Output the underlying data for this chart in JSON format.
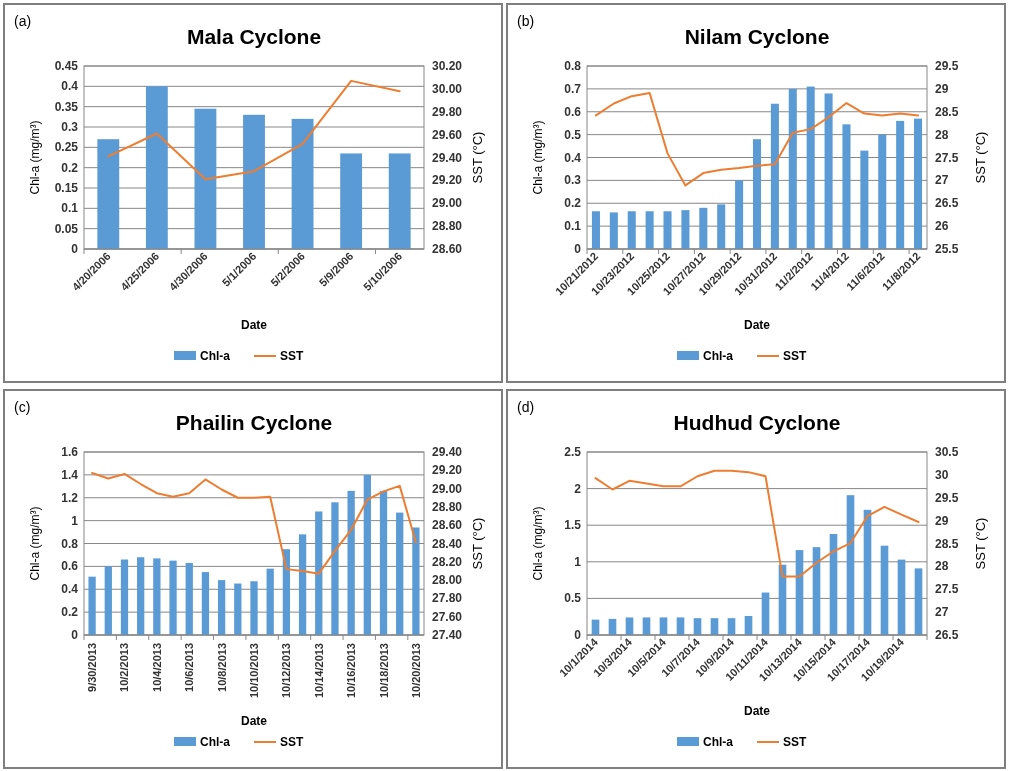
{
  "chart_data": [
    {
      "type": "bar",
      "title": "Mala Cyclone",
      "annotations": [
        "(a)"
      ],
      "xlabel": "Date",
      "ylabel": "Chl-a (mg/m³)",
      "y2label": "SST (°C)",
      "categories": [
        "4/20/2006",
        "4/25/2006",
        "4/30/2006",
        "5/1/2006",
        "5/2/2006",
        "5/9/2006",
        "5/10/2006"
      ],
      "ylim": [
        0,
        0.45
      ],
      "yticks": [
        0,
        0.05,
        0.1,
        0.15,
        0.2,
        0.25,
        0.3,
        0.35,
        0.4,
        0.45
      ],
      "y2lim": [
        28.6,
        30.2
      ],
      "y2ticks": [
        {
          "value": 28.6,
          "label": "28.60"
        },
        {
          "value": 28.8,
          "label": "28.80"
        },
        {
          "value": 29,
          "label": "29.00"
        },
        {
          "value": 29.2,
          "label": "29.20"
        },
        {
          "value": 29.4,
          "label": "29.40"
        },
        {
          "value": 29.6,
          "label": "29.60"
        },
        {
          "value": 29.8,
          "label": "29.80"
        },
        {
          "value": 30,
          "label": "30.00"
        },
        {
          "value": 30.2,
          "label": "30.20"
        }
      ],
      "grid": "y",
      "legend": "bottom",
      "series": [
        {
          "name": "Chl-a",
          "color": "#5b9bd5",
          "values": [
            0.27,
            0.4,
            0.345,
            0.33,
            0.32,
            0.235,
            0.235
          ]
        },
        {
          "name": "SST",
          "type": "line",
          "axis": "y2",
          "color": "#ed7d31",
          "values": [
            29.41,
            29.61,
            29.21,
            29.28,
            29.52,
            30.07,
            29.98
          ]
        }
      ]
    },
    {
      "type": "bar",
      "title": "Nilam Cyclone",
      "annotations": [
        "(b)"
      ],
      "xlabel": "Date",
      "ylabel": "Chl-a (mg/m³)",
      "y2label": "SST (°C)",
      "categories": [
        "10/21/2012",
        null,
        "10/23/2012",
        null,
        "10/25/2012",
        null,
        "10/27/2012",
        null,
        "10/29/2012",
        null,
        "10/31/2012",
        null,
        "11/2/2012",
        null,
        "11/4/2012",
        null,
        "11/6/2012",
        null,
        "11/8/2012"
      ],
      "ylim": [
        0,
        0.8
      ],
      "yticks": [
        0,
        0.1,
        0.2,
        0.3,
        0.4,
        0.5,
        0.6,
        0.7,
        0.8
      ],
      "y2lim": [
        25.5,
        29.5
      ],
      "y2ticks": [
        25.5,
        26,
        26.5,
        27,
        27.5,
        28,
        28.5,
        29,
        29.5
      ],
      "grid": "y",
      "legend": "bottom",
      "series": [
        {
          "name": "Chl-a",
          "color": "#5b9bd5",
          "values": [
            0.165,
            0.16,
            0.165,
            0.165,
            0.165,
            0.17,
            0.18,
            0.195,
            0.3,
            0.48,
            0.635,
            0.7,
            0.71,
            0.68,
            0.545,
            0.43,
            0.5,
            0.56,
            0.57
          ]
        },
        {
          "name": "SST",
          "type": "line",
          "axis": "y2",
          "color": "#ed7d31",
          "values": [
            28.42,
            28.68,
            28.84,
            28.91,
            27.59,
            26.89,
            27.16,
            27.23,
            27.27,
            27.32,
            27.35,
            28.04,
            28.12,
            28.38,
            28.69,
            28.46,
            28.42,
            28.46,
            28.42
          ]
        }
      ]
    },
    {
      "type": "bar",
      "title": "Phailin Cyclone",
      "annotations": [
        "(c)"
      ],
      "xlabel": "Date",
      "ylabel": "Chl-a (mg/m³)",
      "y2label": "SST (°C)",
      "categories": [
        "9/30/2013",
        null,
        "10/2/2013",
        null,
        "10/4/2013",
        null,
        "10/6/2013",
        null,
        "10/8/2013",
        null,
        "10/10/2013",
        null,
        "10/12/2013",
        null,
        "10/14/2013",
        null,
        "10/16/2013",
        null,
        "10/18/2013",
        null,
        "10/20/2013"
      ],
      "ylim": [
        0,
        1.6
      ],
      "yticks": [
        0,
        0.2,
        0.4,
        0.6,
        0.8,
        1,
        1.2,
        1.4,
        1.6
      ],
      "y2lim": [
        27.4,
        29.4
      ],
      "y2ticks": [
        {
          "value": 27.4,
          "label": "27.40"
        },
        {
          "value": 27.6,
          "label": "27.60"
        },
        {
          "value": 27.8,
          "label": "27.80"
        },
        {
          "value": 28,
          "label": "28.00"
        },
        {
          "value": 28.2,
          "label": "28.20"
        },
        {
          "value": 28.4,
          "label": "28.40"
        },
        {
          "value": 28.6,
          "label": "28.60"
        },
        {
          "value": 28.8,
          "label": "28.80"
        },
        {
          "value": 29,
          "label": "29.00"
        },
        {
          "value": 29.2,
          "label": "29.20"
        },
        {
          "value": 29.4,
          "label": "29.40"
        }
      ],
      "grid": "y",
      "legend": "bottom",
      "series": [
        {
          "name": "Chl-a",
          "color": "#5b9bd5",
          "values": [
            0.51,
            0.6,
            0.66,
            0.68,
            0.67,
            0.65,
            0.63,
            0.55,
            0.48,
            0.45,
            0.47,
            0.58,
            0.75,
            0.88,
            1.08,
            1.16,
            1.26,
            1.4,
            1.26,
            1.07,
            0.94
          ]
        },
        {
          "name": "SST",
          "type": "line",
          "axis": "y2",
          "color": "#ed7d31",
          "values": [
            29.17,
            29.11,
            29.16,
            29.05,
            28.95,
            28.91,
            28.95,
            29.1,
            28.99,
            28.9,
            28.9,
            28.91,
            28.12,
            28.1,
            28.07,
            28.32,
            28.55,
            28.88,
            28.97,
            29.03,
            28.41
          ]
        }
      ]
    },
    {
      "type": "bar",
      "title": "Hudhud Cyclone",
      "annotations": [
        "(d)"
      ],
      "xlabel": "Date",
      "ylabel": "Chl-a (mg/m³)",
      "y2label": "SST (°C)",
      "categories": [
        "10/1/2014",
        null,
        "10/3/2014",
        null,
        "10/5/2014",
        null,
        "10/7/2014",
        null,
        "10/9/2014",
        null,
        "10/11/2014",
        null,
        "10/13/2014",
        null,
        "10/15/2014",
        null,
        "10/17/2014",
        null,
        "10/19/2014",
        null
      ],
      "ylim": [
        0,
        2.5
      ],
      "yticks": [
        0,
        0.5,
        1,
        1.5,
        2,
        2.5
      ],
      "y2lim": [
        26.5,
        30.5
      ],
      "y2ticks": [
        26.5,
        27,
        27.5,
        28,
        28.5,
        29,
        29.5,
        30,
        30.5
      ],
      "grid": "y",
      "legend": "bottom",
      "series": [
        {
          "name": "Chl-a",
          "color": "#5b9bd5",
          "values": [
            0.21,
            0.22,
            0.24,
            0.24,
            0.24,
            0.24,
            0.23,
            0.23,
            0.23,
            0.26,
            0.58,
            0.96,
            1.16,
            1.2,
            1.38,
            1.91,
            1.71,
            1.22,
            1.03,
            0.91
          ]
        },
        {
          "name": "SST",
          "type": "line",
          "axis": "y2",
          "color": "#ed7d31",
          "values": [
            29.93,
            29.68,
            29.87,
            29.81,
            29.75,
            29.75,
            29.97,
            30.09,
            30.09,
            30.06,
            29.97,
            27.78,
            27.78,
            28.08,
            28.33,
            28.51,
            29.1,
            29.3,
            29.13,
            28.97
          ]
        }
      ]
    }
  ]
}
